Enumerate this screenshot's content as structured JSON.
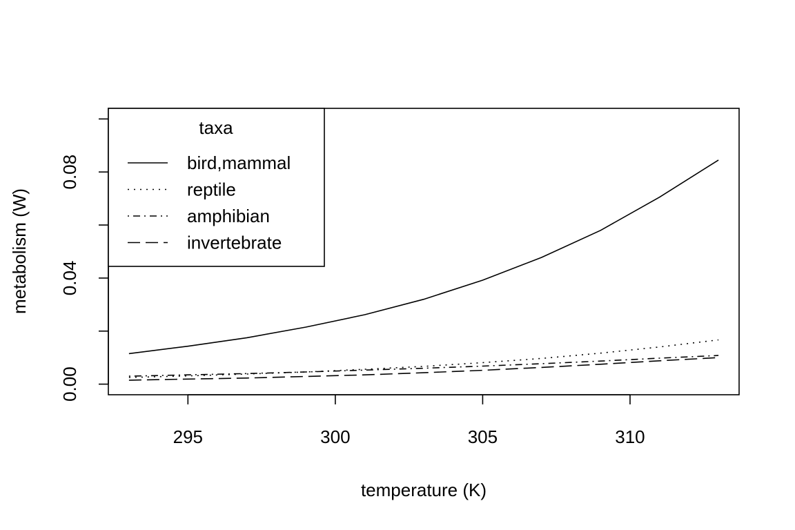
{
  "chart_data": {
    "type": "line",
    "title": "",
    "xlabel": "temperature (K)",
    "ylabel": "metabolism (W)",
    "xlim": [
      292.3,
      313.7
    ],
    "ylim": [
      -0.004,
      0.104
    ],
    "xticks": [
      295,
      300,
      305,
      310
    ],
    "xtick_labels": [
      "295",
      "300",
      "305",
      "310"
    ],
    "yticks": [
      0.0,
      0.02,
      0.04,
      0.06,
      0.08,
      0.1
    ],
    "ytick_labels": [
      "0.00",
      "",
      "0.04",
      "",
      "0.08",
      ""
    ],
    "grid": false,
    "legend": {
      "title": "taxa",
      "position": "top-left"
    },
    "x": [
      293,
      295,
      297,
      299,
      301,
      303,
      305,
      307,
      309,
      311,
      313
    ],
    "series": [
      {
        "name": "bird,mammal",
        "line_style": "solid",
        "values": [
          0.0115,
          0.0143,
          0.0175,
          0.0215,
          0.0262,
          0.032,
          0.0392,
          0.0478,
          0.058,
          0.0705,
          0.0845
        ]
      },
      {
        "name": "reptile",
        "line_style": "dotted",
        "values": [
          0.0025,
          0.0031,
          0.0038,
          0.0046,
          0.0056,
          0.0067,
          0.0081,
          0.0097,
          0.0117,
          0.014,
          0.0167
        ]
      },
      {
        "name": "amphibian",
        "line_style": "dotdash",
        "values": [
          0.003,
          0.0035,
          0.004,
          0.0046,
          0.0053,
          0.006,
          0.0068,
          0.0077,
          0.0087,
          0.0098,
          0.0108
        ]
      },
      {
        "name": "invertebrate",
        "line_style": "longdash",
        "values": [
          0.0015,
          0.0019,
          0.0023,
          0.0029,
          0.0035,
          0.0043,
          0.0052,
          0.0063,
          0.0075,
          0.0088,
          0.01
        ]
      }
    ]
  }
}
